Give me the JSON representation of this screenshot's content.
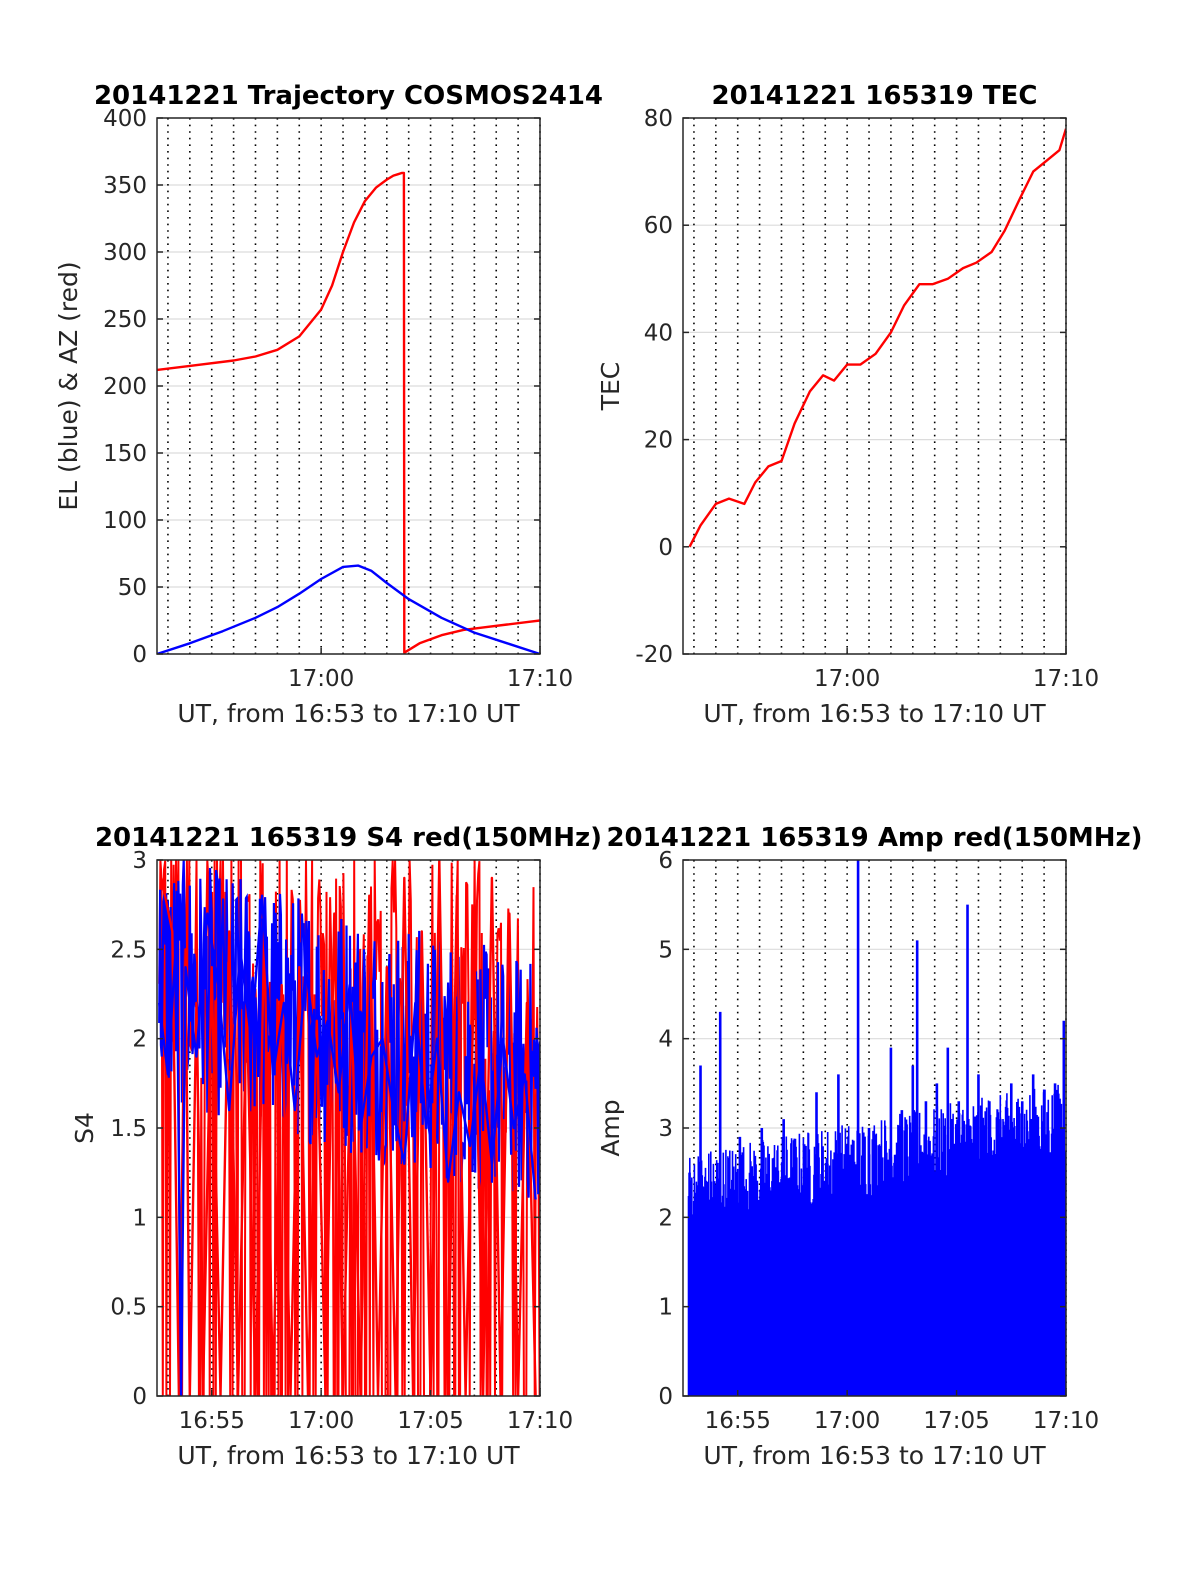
{
  "chart_data": [
    {
      "type": "line",
      "title": "20141221 Trajectory COSMOS2414",
      "xlabel": "UT, from 16:53 to 17:10 UT",
      "ylabel": "EL (blue) & AZ (red)",
      "xlim_minutes": [
        16.5,
        34
      ],
      "ylim": [
        0,
        400
      ],
      "xticks": [
        {
          "value": 24,
          "label": "17:00"
        },
        {
          "value": 34,
          "label": "17:10"
        }
      ],
      "yticks": [
        {
          "value": 0,
          "label": "0"
        },
        {
          "value": 50,
          "label": "50"
        },
        {
          "value": 100,
          "label": "100"
        },
        {
          "value": 150,
          "label": "150"
        },
        {
          "value": 200,
          "label": "200"
        },
        {
          "value": 250,
          "label": "250"
        },
        {
          "value": 300,
          "label": "300"
        },
        {
          "value": 350,
          "label": "350"
        },
        {
          "value": 400,
          "label": "400"
        }
      ],
      "grid": "y solid, x dotted",
      "series": [
        {
          "color": "#ff0000",
          "x": [
            16.5,
            18,
            20,
            21,
            22,
            23,
            24,
            24.5,
            25,
            25.5,
            26,
            26.5,
            27,
            27.3,
            27.5,
            27.7,
            27.78,
            27.8,
            28.5,
            29.5,
            30.5,
            31.5,
            32.5,
            33.5,
            34
          ],
          "y": [
            212,
            215,
            219,
            222,
            227,
            237,
            257,
            275,
            300,
            322,
            338,
            348,
            354,
            357,
            358,
            359,
            359,
            1,
            8,
            14,
            18,
            20,
            22,
            24,
            25
          ]
        },
        {
          "color": "#0000ff",
          "x": [
            16.5,
            18,
            19.5,
            21,
            22,
            23,
            24,
            25,
            25.7,
            26.3,
            27,
            28,
            29.5,
            31,
            32.5,
            34
          ],
          "y": [
            0,
            8,
            17,
            27,
            35,
            45,
            56,
            65,
            66,
            62,
            53,
            41,
            27,
            16,
            8,
            0
          ]
        }
      ]
    },
    {
      "type": "line",
      "title": "20141221 165319 TEC",
      "xlabel": "UT, from 16:53 to 17:10 UT",
      "ylabel": "TEC",
      "xlim_minutes": [
        16.5,
        34
      ],
      "ylim": [
        -20,
        80
      ],
      "xticks": [
        {
          "value": 24,
          "label": "17:00"
        },
        {
          "value": 34,
          "label": "17:10"
        }
      ],
      "yticks": [
        {
          "value": -20,
          "label": "-20"
        },
        {
          "value": 0,
          "label": "0"
        },
        {
          "value": 20,
          "label": "20"
        },
        {
          "value": 40,
          "label": "40"
        },
        {
          "value": 60,
          "label": "60"
        },
        {
          "value": 80,
          "label": "80"
        }
      ],
      "grid": "y solid, x dotted",
      "series": [
        {
          "color": "#ff0000",
          "x": [
            16.8,
            17.3,
            18,
            18.6,
            19.3,
            19.8,
            20.4,
            21,
            21.6,
            22.3,
            22.9,
            23.4,
            24,
            24.6,
            25.3,
            26,
            26.6,
            27.3,
            27.9,
            28.6,
            29.3,
            29.9,
            30.6,
            31.2,
            31.9,
            32.5,
            33.1,
            33.7,
            34
          ],
          "y": [
            0,
            4,
            8,
            9,
            8,
            12,
            15,
            16,
            23,
            29,
            32,
            31,
            34,
            34,
            36,
            40,
            45,
            49,
            49,
            50,
            52,
            53,
            55,
            59,
            65,
            70,
            72,
            74,
            78
          ]
        }
      ]
    },
    {
      "type": "line",
      "title": "20141221 165319 S4 red(150MHz)",
      "xlabel": "UT, from 16:53 to 17:10 UT",
      "ylabel": "S4",
      "xlim_minutes": [
        16.5,
        34
      ],
      "ylim": [
        0,
        3
      ],
      "xticks": [
        {
          "value": 19,
          "label": "16:55"
        },
        {
          "value": 24,
          "label": "17:00"
        },
        {
          "value": 29,
          "label": "17:05"
        },
        {
          "value": 34,
          "label": "17:10"
        }
      ],
      "yticks": [
        {
          "value": 0,
          "label": "0"
        },
        {
          "value": 0.5,
          "label": "0.5"
        },
        {
          "value": 1,
          "label": "1"
        },
        {
          "value": 1.5,
          "label": "1.5"
        },
        {
          "value": 2,
          "label": "2"
        },
        {
          "value": 2.5,
          "label": "2.5"
        },
        {
          "value": 3,
          "label": "3"
        }
      ],
      "grid": "y solid, x dotted",
      "series": [
        {
          "color": "#ff0000",
          "x": [
            16.7,
            17.2,
            17.5,
            17.8,
            18.0,
            18.3,
            18.6,
            19.0,
            19.4,
            19.8,
            20.2,
            20.6,
            21.0,
            21.4,
            21.8,
            22.2,
            22.6,
            23.0,
            23.4,
            23.8,
            24.2,
            24.6,
            25.0,
            25.4,
            25.8,
            26.2,
            26.6,
            27.0,
            27.4,
            27.8,
            28.2,
            28.6,
            29.0,
            29.4,
            29.8,
            30.2,
            30.6,
            31.0,
            31.4,
            31.8,
            32.2,
            32.6,
            33.0,
            33.4,
            33.8
          ],
          "y": [
            2.9,
            2.6,
            0,
            2.5,
            0,
            2.2,
            0,
            2.4,
            0,
            2.6,
            0,
            2.2,
            0,
            2.6,
            0,
            2.3,
            0,
            2.4,
            0,
            2.1,
            0,
            2.7,
            0,
            2.2,
            0,
            2.8,
            0,
            2.4,
            0,
            2.9,
            0,
            2.6,
            0,
            3.0,
            0,
            2.8,
            0,
            2.5,
            0,
            2.9,
            0,
            2.7,
            0,
            2.2,
            0
          ]
        },
        {
          "color": "#0000ff",
          "x": [
            16.6,
            17.0,
            17.4,
            17.6,
            17.8,
            18.3,
            18.8,
            19.3,
            19.8,
            20.3,
            20.8,
            21.3,
            21.8,
            22.3,
            22.8,
            23.3,
            23.8,
            24.3,
            24.8,
            25.3,
            25.8,
            26.3,
            26.8,
            27.3,
            27.8,
            28.3,
            28.8,
            29.3,
            29.8,
            30.3,
            30.8,
            31.3,
            31.8,
            32.3,
            32.8,
            33.3,
            33.8
          ],
          "y": [
            2.2,
            1.8,
            2.6,
            0,
            2.4,
            1.9,
            2.7,
            2.3,
            1.6,
            2.5,
            2.0,
            2.8,
            1.8,
            2.2,
            1.6,
            2.4,
            1.9,
            2.1,
            1.7,
            2.3,
            1.5,
            1.9,
            2.0,
            1.6,
            1.3,
            2.2,
            1.5,
            2.0,
            1.2,
            1.7,
            1.4,
            1.9,
            1.3,
            2.0,
            1.5,
            1.8,
            1.1
          ]
        }
      ]
    },
    {
      "type": "bar",
      "title": "20141221 165319 Amp red(150MHz)",
      "xlabel": "UT, from 16:53 to 17:10 UT",
      "ylabel": "Amp",
      "xlim_minutes": [
        16.5,
        34
      ],
      "ylim": [
        0,
        6
      ],
      "xticks": [
        {
          "value": 19,
          "label": "16:55"
        },
        {
          "value": 24,
          "label": "17:00"
        },
        {
          "value": 29,
          "label": "17:05"
        },
        {
          "value": 34,
          "label": "17:10"
        }
      ],
      "yticks": [
        {
          "value": 0,
          "label": "0"
        },
        {
          "value": 1,
          "label": "1"
        },
        {
          "value": 2,
          "label": "2"
        },
        {
          "value": 3,
          "label": "3"
        },
        {
          "value": 4,
          "label": "4"
        },
        {
          "value": 5,
          "label": "5"
        },
        {
          "value": 6,
          "label": "6"
        }
      ],
      "grid": "y solid, x dotted",
      "series": [
        {
          "color": "#0000ff",
          "x": [
            16.8,
            17.3,
            17.6,
            18.2,
            18.7,
            19.1,
            19.6,
            20.1,
            20.5,
            21.1,
            21.6,
            22.1,
            22.6,
            23.1,
            23.6,
            24.1,
            24.5,
            25.0,
            25.5,
            26.0,
            26.5,
            27.0,
            27.2,
            27.6,
            28.1,
            28.6,
            29.1,
            29.5,
            30.0,
            30.5,
            31.0,
            31.5,
            32.0,
            32.5,
            33.0,
            33.5,
            33.9
          ],
          "y": [
            2.5,
            3.7,
            2.4,
            4.3,
            2.3,
            2.9,
            2.5,
            3.0,
            2.3,
            3.1,
            2.5,
            2.8,
            3.4,
            2.6,
            3.6,
            2.7,
            6.0,
            3.0,
            2.8,
            3.9,
            3.2,
            3.7,
            5.1,
            3.3,
            3.5,
            3.9,
            3.3,
            5.5,
            3.6,
            3.3,
            3.1,
            3.5,
            3.3,
            3.6,
            3.4,
            3.5,
            4.2
          ]
        }
      ]
    }
  ]
}
